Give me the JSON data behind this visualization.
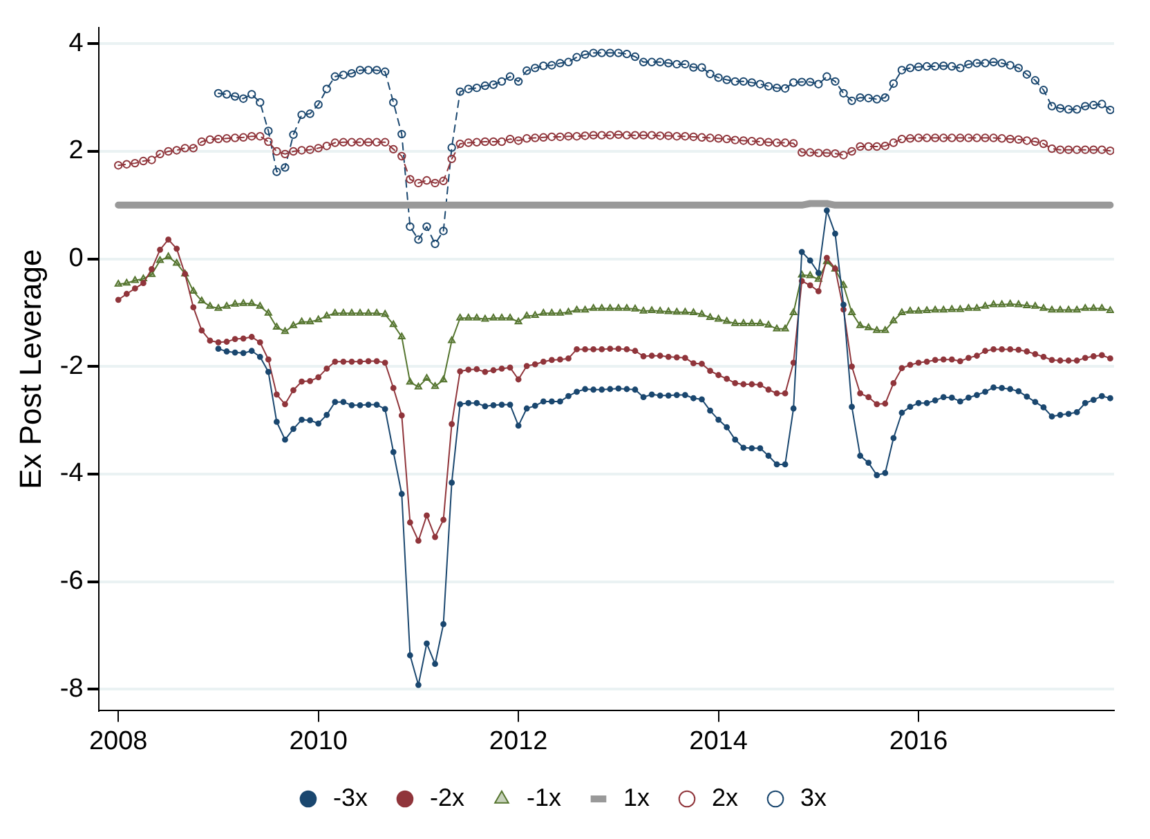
{
  "chart_data": {
    "type": "line",
    "ylabel": "Ex Post Leverage",
    "x": [
      "2008-01",
      "2008-02",
      "2008-03",
      "2008-04",
      "2008-05",
      "2008-06",
      "2008-07",
      "2008-08",
      "2008-09",
      "2008-10",
      "2008-11",
      "2008-12",
      "2009-01",
      "2009-02",
      "2009-03",
      "2009-04",
      "2009-05",
      "2009-06",
      "2009-07",
      "2009-08",
      "2009-09",
      "2009-10",
      "2009-11",
      "2009-12",
      "2010-01",
      "2010-02",
      "2010-03",
      "2010-04",
      "2010-05",
      "2010-06",
      "2010-07",
      "2010-08",
      "2010-09",
      "2010-10",
      "2010-11",
      "2010-12",
      "2011-01",
      "2011-02",
      "2011-03",
      "2011-04",
      "2011-05",
      "2011-06",
      "2011-07",
      "2011-08",
      "2011-09",
      "2011-10",
      "2011-11",
      "2011-12",
      "2012-01",
      "2012-02",
      "2012-03",
      "2012-04",
      "2012-05",
      "2012-06",
      "2012-07",
      "2012-08",
      "2012-09",
      "2012-10",
      "2012-11",
      "2012-12",
      "2013-01",
      "2013-02",
      "2013-03",
      "2013-04",
      "2013-05",
      "2013-06",
      "2013-07",
      "2013-08",
      "2013-09",
      "2013-10",
      "2013-11",
      "2013-12",
      "2014-01",
      "2014-02",
      "2014-03",
      "2014-04",
      "2014-05",
      "2014-06",
      "2014-07",
      "2014-08",
      "2014-09",
      "2014-10",
      "2014-11",
      "2014-12",
      "2015-01",
      "2015-02",
      "2015-03",
      "2015-04",
      "2015-05",
      "2015-06",
      "2015-07",
      "2015-08",
      "2015-09",
      "2015-10",
      "2015-11",
      "2015-12",
      "2016-01",
      "2016-02",
      "2016-03",
      "2016-04",
      "2016-05",
      "2016-06",
      "2016-07",
      "2016-08",
      "2016-09",
      "2016-10",
      "2016-11",
      "2016-12",
      "2017-01",
      "2017-02",
      "2017-03",
      "2017-04",
      "2017-05",
      "2017-06",
      "2017-07",
      "2017-08",
      "2017-09",
      "2017-10",
      "2017-11",
      "2017-12"
    ],
    "series": [
      {
        "name": "-3x",
        "color": "#1a476f",
        "marker": "circle",
        "line_style": "solid",
        "values": [
          null,
          null,
          null,
          null,
          null,
          null,
          null,
          null,
          null,
          null,
          null,
          null,
          -1.67,
          -1.72,
          -1.74,
          -1.75,
          -1.71,
          -1.82,
          -2.1,
          -3.03,
          -3.36,
          -3.16,
          -2.99,
          -3.0,
          -3.06,
          -2.9,
          -2.66,
          -2.66,
          -2.72,
          -2.72,
          -2.71,
          -2.71,
          -2.79,
          -3.59,
          -4.37,
          -7.37,
          -7.92,
          -7.15,
          -7.53,
          -6.79,
          -4.16,
          -2.7,
          -2.68,
          -2.68,
          -2.74,
          -2.72,
          -2.71,
          -2.71,
          -3.1,
          -2.78,
          -2.73,
          -2.65,
          -2.65,
          -2.65,
          -2.55,
          -2.47,
          -2.42,
          -2.43,
          -2.43,
          -2.42,
          -2.41,
          -2.42,
          -2.43,
          -2.57,
          -2.52,
          -2.54,
          -2.54,
          -2.53,
          -2.53,
          -2.59,
          -2.61,
          -2.82,
          -2.99,
          -3.13,
          -3.36,
          -3.51,
          -3.52,
          -3.52,
          -3.66,
          -3.82,
          -3.82,
          -2.78,
          0.13,
          -0.03,
          -0.26,
          0.9,
          0.47,
          -0.85,
          -2.75,
          -3.66,
          -3.79,
          -4.02,
          -3.98,
          -3.33,
          -2.86,
          -2.75,
          -2.68,
          -2.68,
          -2.63,
          -2.57,
          -2.58,
          -2.65,
          -2.58,
          -2.53,
          -2.47,
          -2.39,
          -2.4,
          -2.42,
          -2.46,
          -2.56,
          -2.66,
          -2.76,
          -2.93,
          -2.9,
          -2.88,
          -2.85,
          -2.68,
          -2.62,
          -2.55,
          -2.59
        ]
      },
      {
        "name": "-2x",
        "color": "#90353b",
        "marker": "circle",
        "line_style": "solid",
        "values": [
          -0.76,
          -0.65,
          -0.55,
          -0.45,
          -0.19,
          0.17,
          0.36,
          0.19,
          -0.28,
          -0.9,
          -1.33,
          -1.52,
          -1.55,
          -1.54,
          -1.49,
          -1.48,
          -1.45,
          -1.55,
          -1.87,
          -2.52,
          -2.7,
          -2.44,
          -2.28,
          -2.27,
          -2.2,
          -2.04,
          -1.91,
          -1.91,
          -1.91,
          -1.91,
          -1.9,
          -1.9,
          -1.93,
          -2.4,
          -2.91,
          -4.9,
          -5.24,
          -4.77,
          -5.17,
          -4.85,
          -3.07,
          -2.09,
          -2.06,
          -2.05,
          -2.1,
          -2.07,
          -2.04,
          -2.02,
          -2.24,
          -1.99,
          -1.96,
          -1.91,
          -1.88,
          -1.87,
          -1.85,
          -1.68,
          -1.68,
          -1.68,
          -1.68,
          -1.67,
          -1.67,
          -1.68,
          -1.71,
          -1.81,
          -1.8,
          -1.8,
          -1.82,
          -1.83,
          -1.84,
          -1.94,
          -1.95,
          -2.08,
          -2.16,
          -2.23,
          -2.31,
          -2.33,
          -2.33,
          -2.34,
          -2.43,
          -2.5,
          -2.5,
          -1.93,
          -0.41,
          -0.49,
          -0.6,
          0.02,
          -0.18,
          -0.94,
          -2.0,
          -2.5,
          -2.57,
          -2.7,
          -2.69,
          -2.31,
          -2.03,
          -1.97,
          -1.93,
          -1.91,
          -1.88,
          -1.87,
          -1.87,
          -1.9,
          -1.84,
          -1.8,
          -1.71,
          -1.68,
          -1.68,
          -1.68,
          -1.69,
          -1.72,
          -1.77,
          -1.82,
          -1.88,
          -1.89,
          -1.89,
          -1.89,
          -1.84,
          -1.81,
          -1.79,
          -1.85
        ]
      },
      {
        "name": "-1x",
        "color": "#55752f",
        "marker": "triangle",
        "line_style": "solid",
        "values": [
          -0.47,
          -0.45,
          -0.4,
          -0.37,
          -0.29,
          -0.03,
          0.04,
          -0.08,
          -0.28,
          -0.6,
          -0.78,
          -0.88,
          -0.92,
          -0.88,
          -0.84,
          -0.83,
          -0.83,
          -0.88,
          -1.01,
          -1.27,
          -1.35,
          -1.24,
          -1.17,
          -1.17,
          -1.13,
          -1.06,
          -1.01,
          -1.01,
          -1.01,
          -1.01,
          -1.01,
          -1.01,
          -1.03,
          -1.22,
          -1.45,
          -2.29,
          -2.38,
          -2.22,
          -2.37,
          -2.25,
          -1.52,
          -1.1,
          -1.1,
          -1.1,
          -1.12,
          -1.1,
          -1.1,
          -1.1,
          -1.17,
          -1.06,
          -1.05,
          -1.01,
          -1.01,
          -1.01,
          -0.99,
          -0.95,
          -0.95,
          -0.92,
          -0.92,
          -0.92,
          -0.92,
          -0.92,
          -0.93,
          -0.97,
          -0.96,
          -0.97,
          -0.98,
          -0.99,
          -0.99,
          -1.0,
          -1.03,
          -1.09,
          -1.12,
          -1.16,
          -1.2,
          -1.2,
          -1.2,
          -1.2,
          -1.23,
          -1.3,
          -1.3,
          -1.0,
          -0.3,
          -0.31,
          -0.38,
          -0.05,
          -0.19,
          -0.49,
          -1.0,
          -1.24,
          -1.28,
          -1.33,
          -1.33,
          -1.15,
          -1.0,
          -0.97,
          -0.97,
          -0.96,
          -0.95,
          -0.95,
          -0.94,
          -0.94,
          -0.92,
          -0.92,
          -0.88,
          -0.85,
          -0.85,
          -0.84,
          -0.85,
          -0.87,
          -0.88,
          -0.92,
          -0.95,
          -0.95,
          -0.95,
          -0.95,
          -0.92,
          -0.92,
          -0.92,
          -0.96
        ]
      },
      {
        "name": "1x",
        "color": "#999999",
        "marker": "none",
        "line_style": "solid",
        "values": [
          1,
          1,
          1,
          1,
          1,
          1,
          1,
          1,
          1,
          1,
          1,
          1,
          1,
          1,
          1,
          1,
          1,
          1,
          1,
          1,
          1,
          1,
          1,
          1,
          1,
          1,
          1,
          1,
          1,
          1,
          1,
          1,
          1,
          1,
          1,
          1,
          1,
          1,
          1,
          1,
          1,
          1,
          1,
          1,
          1,
          1,
          1,
          1,
          1,
          1,
          1,
          1,
          1,
          1,
          1,
          1,
          1,
          1,
          1,
          1,
          1,
          1,
          1,
          1,
          1,
          1,
          1,
          1,
          1,
          1,
          1,
          1,
          1,
          1,
          1,
          1,
          1,
          1,
          1,
          1,
          1,
          1,
          1,
          1.03,
          1.03,
          1.03,
          1,
          1,
          1,
          1,
          1,
          1,
          1,
          1,
          1,
          1,
          1,
          1,
          1,
          1,
          1,
          1,
          1,
          1,
          1,
          1,
          1,
          1,
          1,
          1,
          1,
          1,
          1,
          1,
          1,
          1,
          1,
          1,
          1,
          1
        ]
      },
      {
        "name": "2x",
        "color": "#90353b",
        "marker": "circle",
        "line_style": "dashed",
        "values": [
          1.74,
          1.76,
          1.78,
          1.82,
          1.84,
          1.95,
          2.0,
          2.02,
          2.06,
          2.06,
          2.18,
          2.22,
          2.23,
          2.24,
          2.25,
          2.26,
          2.28,
          2.28,
          2.18,
          2.0,
          1.95,
          2.0,
          2.02,
          2.03,
          2.06,
          2.1,
          2.16,
          2.17,
          2.17,
          2.17,
          2.17,
          2.17,
          2.17,
          2.04,
          1.91,
          1.48,
          1.41,
          1.46,
          1.41,
          1.45,
          1.86,
          2.14,
          2.16,
          2.17,
          2.18,
          2.18,
          2.18,
          2.23,
          2.2,
          2.24,
          2.25,
          2.26,
          2.27,
          2.27,
          2.28,
          2.28,
          2.29,
          2.3,
          2.3,
          2.3,
          2.31,
          2.3,
          2.3,
          2.3,
          2.3,
          2.29,
          2.29,
          2.28,
          2.28,
          2.27,
          2.26,
          2.25,
          2.24,
          2.23,
          2.21,
          2.2,
          2.19,
          2.18,
          2.17,
          2.16,
          2.16,
          2.15,
          1.98,
          1.98,
          1.97,
          1.97,
          1.96,
          1.93,
          2.0,
          2.09,
          2.09,
          2.09,
          2.1,
          2.16,
          2.23,
          2.24,
          2.25,
          2.25,
          2.25,
          2.25,
          2.25,
          2.25,
          2.25,
          2.25,
          2.25,
          2.25,
          2.24,
          2.23,
          2.22,
          2.2,
          2.18,
          2.14,
          2.05,
          2.03,
          2.03,
          2.03,
          2.03,
          2.03,
          2.03,
          2.01
        ]
      },
      {
        "name": "3x",
        "color": "#1a476f",
        "marker": "circle",
        "line_style": "dashed",
        "values": [
          null,
          null,
          null,
          null,
          null,
          null,
          null,
          null,
          null,
          null,
          null,
          null,
          3.08,
          3.06,
          3.02,
          2.98,
          3.06,
          2.91,
          2.38,
          1.62,
          1.7,
          2.31,
          2.68,
          2.7,
          2.87,
          3.16,
          3.39,
          3.42,
          3.45,
          3.51,
          3.51,
          3.51,
          3.48,
          2.91,
          2.32,
          0.6,
          0.36,
          0.6,
          0.28,
          0.52,
          2.07,
          3.11,
          3.16,
          3.18,
          3.22,
          3.24,
          3.3,
          3.39,
          3.3,
          3.5,
          3.55,
          3.59,
          3.6,
          3.64,
          3.66,
          3.75,
          3.8,
          3.83,
          3.83,
          3.83,
          3.83,
          3.81,
          3.76,
          3.66,
          3.66,
          3.66,
          3.64,
          3.62,
          3.62,
          3.56,
          3.56,
          3.44,
          3.37,
          3.33,
          3.3,
          3.3,
          3.28,
          3.25,
          3.21,
          3.18,
          3.17,
          3.28,
          3.29,
          3.29,
          3.25,
          3.39,
          3.3,
          3.08,
          2.94,
          3.0,
          2.99,
          2.97,
          3.0,
          3.26,
          3.51,
          3.55,
          3.57,
          3.58,
          3.58,
          3.59,
          3.58,
          3.55,
          3.62,
          3.64,
          3.64,
          3.66,
          3.64,
          3.6,
          3.55,
          3.43,
          3.32,
          3.14,
          2.84,
          2.8,
          2.78,
          2.78,
          2.84,
          2.86,
          2.88,
          2.77
        ]
      }
    ],
    "xlim": [
      "2007-10-20",
      "2017-12-15"
    ],
    "xticks": [
      "2008",
      "2010",
      "2012",
      "2014",
      "2016"
    ],
    "ylim": [
      -8.4,
      4.3
    ],
    "yticks": [
      -8,
      -6,
      -4,
      -2,
      0,
      2,
      4
    ],
    "grid": "y",
    "legend": "bottom"
  }
}
